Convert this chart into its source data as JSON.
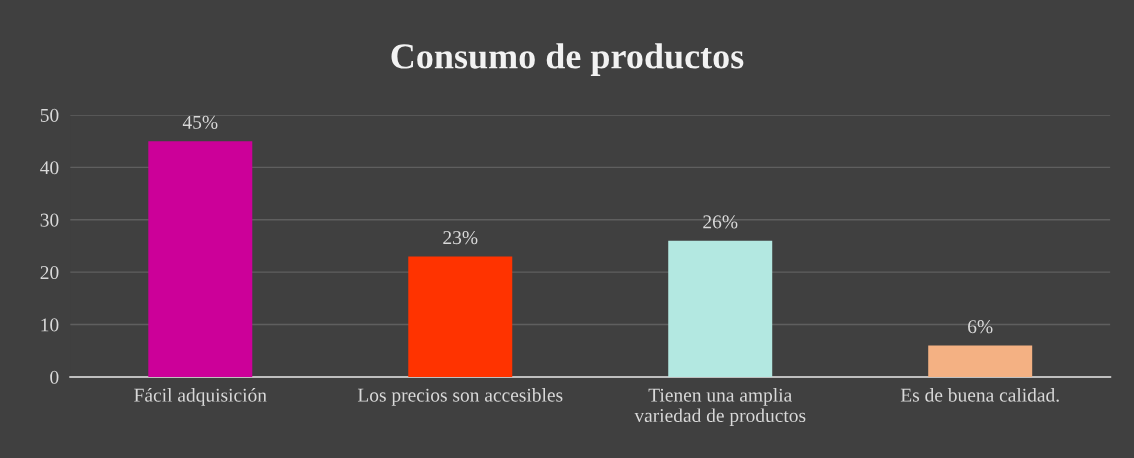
{
  "chart_data": {
    "type": "bar",
    "title": "Consumo de productos",
    "categories": [
      "Fácil adquisición",
      "Los precios son accesibles",
      "Tienen una amplia\nvariedad de productos",
      "Es de buena calidad."
    ],
    "values": [
      45,
      23,
      26,
      6
    ],
    "colors": [
      "#cc0099",
      "#ff3300",
      "#b3e8e1",
      "#f4b183"
    ],
    "value_labels": [
      "45%",
      "23%",
      "26%",
      "6%"
    ],
    "ylim": [
      0,
      50
    ],
    "yticks": [
      0,
      10,
      20,
      30,
      40,
      50
    ],
    "grid": "y",
    "legend": false
  }
}
